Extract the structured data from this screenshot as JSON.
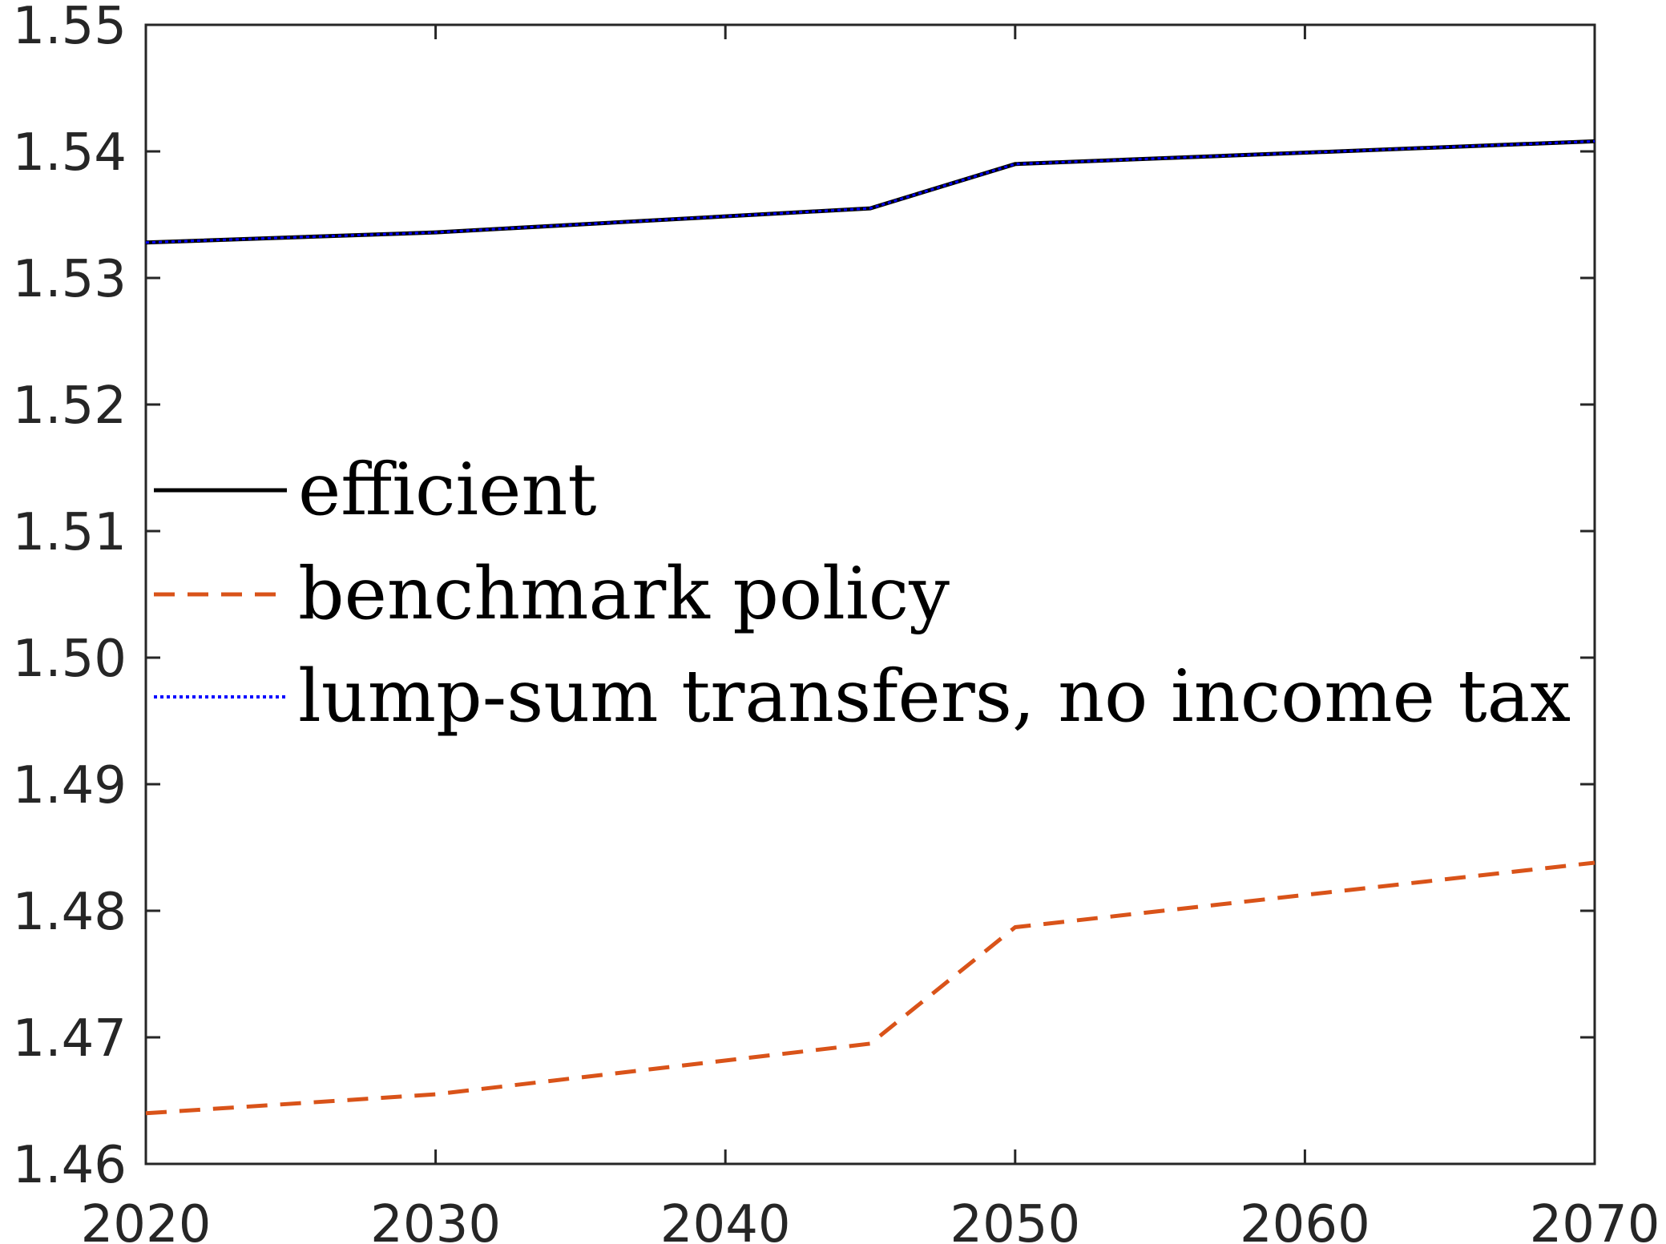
{
  "chart_data": {
    "type": "line",
    "title": "",
    "xlabel": "",
    "ylabel": "",
    "xlim": [
      2020,
      2070
    ],
    "ylim": [
      1.46,
      1.55
    ],
    "xticks": [
      "2020",
      "2030",
      "2040",
      "2050",
      "2060",
      "2070"
    ],
    "yticks": [
      "1.46",
      "1.47",
      "1.48",
      "1.49",
      "1.50",
      "1.51",
      "1.52",
      "1.53",
      "1.54",
      "1.55"
    ],
    "grid": false,
    "legend_position": "middle-left",
    "series": [
      {
        "name": "efficient",
        "color": "#000000",
        "style": "solid",
        "x": [
          2020,
          2030,
          2045,
          2050,
          2070
        ],
        "y": [
          1.5328,
          1.5336,
          1.5355,
          1.539,
          1.5408
        ]
      },
      {
        "name": "benchmark policy",
        "color": "#D95319",
        "style": "dashed",
        "x": [
          2020,
          2030,
          2045,
          2050,
          2070
        ],
        "y": [
          1.464,
          1.4655,
          1.4695,
          1.4787,
          1.4838
        ]
      },
      {
        "name": "lump-sum transfers, no income tax",
        "color": "#0000FF",
        "style": "dotted",
        "x": [
          2020,
          2030,
          2045,
          2050,
          2070
        ],
        "y": [
          1.5328,
          1.5336,
          1.5355,
          1.539,
          1.5408
        ]
      }
    ]
  }
}
